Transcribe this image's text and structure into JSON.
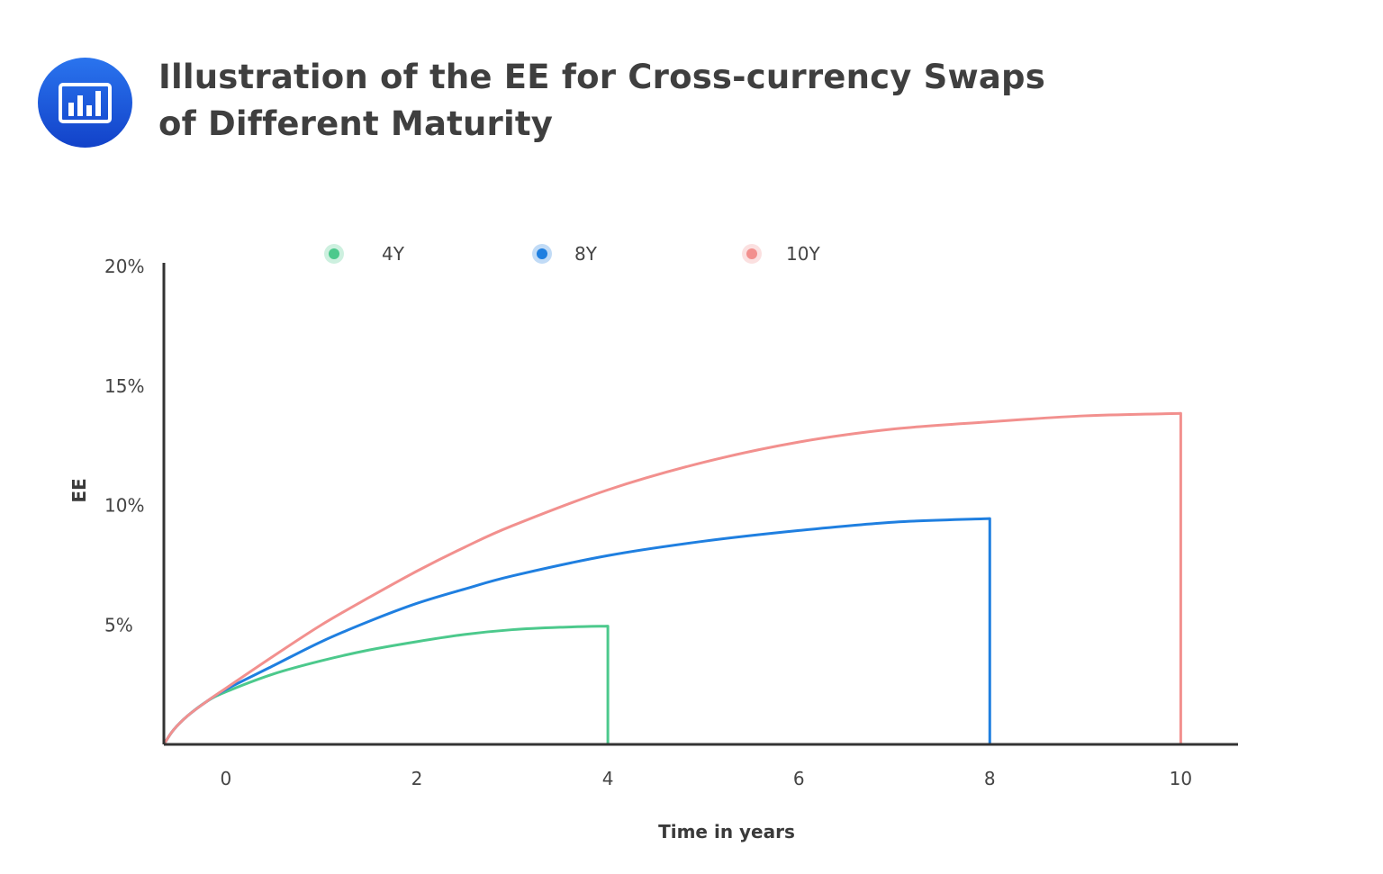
{
  "header": {
    "icon": "bar-chart-icon",
    "icon_color": "#1a5fe0",
    "title_line1": "Illustration of the EE for Cross-currency Swaps",
    "title_line2": "of Different Maturity"
  },
  "chart_data": {
    "type": "line",
    "xlabel": "Time in years",
    "ylabel": "EE",
    "xlim": [
      -0.65,
      10.6
    ],
    "ylim": [
      0,
      20
    ],
    "x_ticks": [
      0,
      2,
      4,
      6,
      8,
      10
    ],
    "y_ticks": [
      5,
      10,
      15,
      20
    ],
    "y_tick_labels": [
      "5%",
      "10%",
      "15%",
      "20%"
    ],
    "grid": false,
    "legend_position": "top",
    "series": [
      {
        "name": "4Y",
        "color": "#4cc98c",
        "maturity": 4,
        "points": [
          [
            -0.65,
            0
          ],
          [
            -0.55,
            0.6
          ],
          [
            -0.4,
            1.2
          ],
          [
            -0.2,
            1.8
          ],
          [
            0,
            2.2
          ],
          [
            0.5,
            2.95
          ],
          [
            1,
            3.5
          ],
          [
            1.5,
            3.95
          ],
          [
            2,
            4.3
          ],
          [
            2.5,
            4.6
          ],
          [
            3,
            4.8
          ],
          [
            3.5,
            4.9
          ],
          [
            4,
            4.95
          ],
          [
            4,
            0
          ]
        ]
      },
      {
        "name": "8Y",
        "color": "#1f7fe0",
        "maturity": 8,
        "points": [
          [
            -0.65,
            0
          ],
          [
            -0.55,
            0.6
          ],
          [
            -0.4,
            1.2
          ],
          [
            -0.2,
            1.8
          ],
          [
            0,
            2.3
          ],
          [
            0.5,
            3.3
          ],
          [
            1,
            4.3
          ],
          [
            1.5,
            5.15
          ],
          [
            2,
            5.9
          ],
          [
            2.5,
            6.5
          ],
          [
            3,
            7.05
          ],
          [
            4,
            7.9
          ],
          [
            5,
            8.5
          ],
          [
            6,
            8.95
          ],
          [
            7,
            9.3
          ],
          [
            8,
            9.45
          ],
          [
            8,
            0
          ]
        ]
      },
      {
        "name": "10Y",
        "color": "#f2908e",
        "maturity": 10,
        "points": [
          [
            -0.65,
            0
          ],
          [
            -0.55,
            0.6
          ],
          [
            -0.4,
            1.2
          ],
          [
            -0.2,
            1.8
          ],
          [
            0,
            2.35
          ],
          [
            0.5,
            3.7
          ],
          [
            1,
            5.0
          ],
          [
            1.5,
            6.15
          ],
          [
            2,
            7.25
          ],
          [
            2.5,
            8.25
          ],
          [
            3,
            9.15
          ],
          [
            4,
            10.65
          ],
          [
            5,
            11.8
          ],
          [
            6,
            12.65
          ],
          [
            7,
            13.2
          ],
          [
            8,
            13.5
          ],
          [
            9,
            13.75
          ],
          [
            10,
            13.85
          ],
          [
            10,
            0
          ]
        ]
      }
    ]
  }
}
